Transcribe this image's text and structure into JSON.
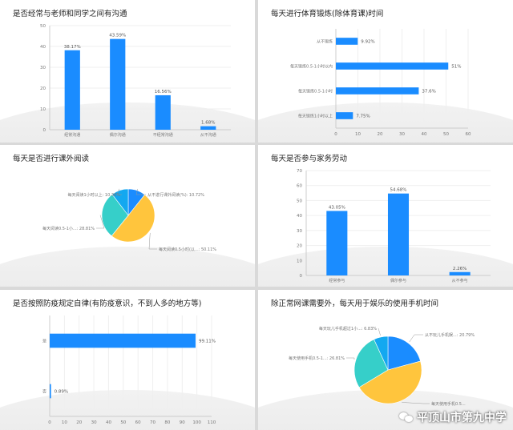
{
  "chart_data": [
    {
      "type": "bar",
      "title": "是否经常与老师和同学之间有沟通",
      "categories": [
        "经常沟通",
        "偶尔沟通",
        "不经常沟通",
        "从不沟通"
      ],
      "values": [
        38.17,
        43.59,
        16.56,
        1.68
      ],
      "value_labels": [
        "38.17%",
        "43.59%",
        "16.56%",
        "1.68%"
      ],
      "ylim": [
        0,
        50
      ],
      "yticks": [
        "0",
        "10",
        "20",
        "30",
        "40",
        "50"
      ],
      "color": "#1a8cff"
    },
    {
      "type": "bar",
      "orientation": "horizontal",
      "title": "每天进行体育锻炼(除体育课)时间",
      "categories": [
        "从不锻炼",
        "每天锻炼0.5-1小时以内",
        "每天锻炼0.5-1小时",
        "每天锻炼1小时以上"
      ],
      "values": [
        9.92,
        51,
        37.6,
        7.75
      ],
      "value_labels": [
        "9.92%",
        "51%",
        "37.6%",
        "7.75%"
      ],
      "xlim": [
        0,
        60
      ],
      "xticks": [
        "0",
        "10",
        "20",
        "30",
        "40",
        "50",
        "60"
      ],
      "color": "#1a8cff"
    },
    {
      "type": "pie",
      "title": "每天是否进行课外阅读",
      "slices": [
        {
          "label": "从不进行课外阅读(%): 10.72%",
          "value": 10.72,
          "color": "#1a8cff"
        },
        {
          "label": "每天阅读0.5小时(以...: 50.11%",
          "value": 50.11,
          "color": "#ffc53d"
        },
        {
          "label": "每天阅读0.5-1小...: 28.81%",
          "value": 28.81,
          "color": "#36cfc9"
        },
        {
          "label": "每天阅读1小时以上: 10.36%",
          "value": 10.36,
          "color": "#13a8f0"
        }
      ]
    },
    {
      "type": "bar",
      "title": "每天是否参与家务劳动",
      "categories": [
        "经常参与",
        "偶尔参与",
        "从不参与"
      ],
      "values": [
        43.05,
        54.68,
        2.26
      ],
      "value_labels": [
        "43.05%",
        "54.68%",
        "2.26%"
      ],
      "ylim": [
        0,
        70
      ],
      "yticks": [
        "0",
        "10",
        "20",
        "30",
        "40",
        "50",
        "60",
        "70"
      ],
      "color": "#1a8cff"
    },
    {
      "type": "bar",
      "orientation": "horizontal",
      "title": "是否按照防疫规定自律(有防疫意识，不到人多的地方等)",
      "categories": [
        "是",
        "否"
      ],
      "values": [
        99.11,
        0.89
      ],
      "value_labels": [
        "99.11%",
        "0.89%"
      ],
      "xlim": [
        0,
        110
      ],
      "xticks": [
        "0",
        "10",
        "20",
        "30",
        "40",
        "50",
        "60",
        "70",
        "80",
        "90",
        "100",
        "110"
      ],
      "color": "#1a8cff"
    },
    {
      "type": "pie",
      "title": "除正常网课需要外，每天用于娱乐的使用手机时间",
      "slices": [
        {
          "label": "从不玩儿手机娱...: 20.79%",
          "value": 20.79,
          "color": "#1a8cff"
        },
        {
          "label": "每天使用手机0.5...",
          "value": 45.56,
          "color": "#ffc53d"
        },
        {
          "label": "每天使用手机0.5-1...: 26.81%",
          "value": 26.81,
          "color": "#36cfc9"
        },
        {
          "label": "每天玩儿手机超过1小...: 6.83%",
          "value": 6.83,
          "color": "#13a8f0"
        }
      ]
    }
  ],
  "watermark": {
    "text": "平顶山市第九中学",
    "icon": "wechat-icon"
  }
}
